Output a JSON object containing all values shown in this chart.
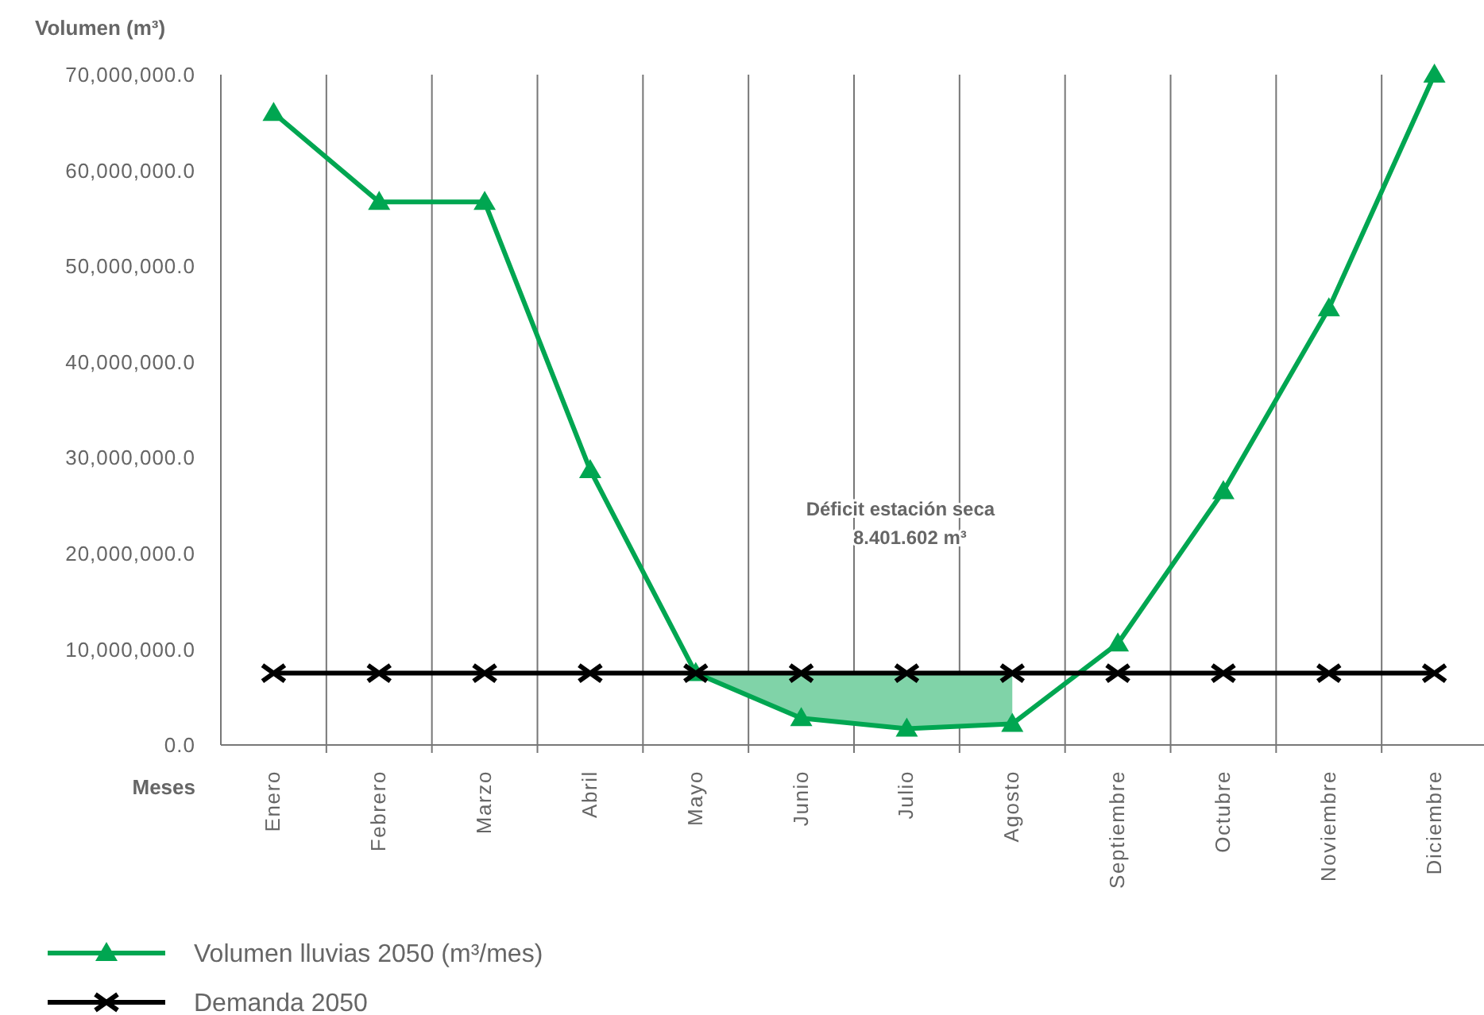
{
  "chart_data": {
    "type": "line",
    "ylabel": "Volumen (m³)",
    "xlabel": "Meses",
    "categories": [
      "Enero",
      "Febrero",
      "Marzo",
      "Abril",
      "Mayo",
      "Junio",
      "Julio",
      "Agosto",
      "Septiembre",
      "Octubre",
      "Noviembre",
      "Diciembre"
    ],
    "series": [
      {
        "name": "Volumen lluvias 2050 (m³/mes)",
        "color": "#00a651",
        "marker": "triangle",
        "values": [
          66000000,
          56700000,
          56700000,
          28700000,
          7500000,
          2800000,
          1700000,
          2200000,
          10600000,
          26500000,
          45600000,
          70000000
        ],
        "lower": [
          null,
          null,
          null,
          null,
          7500000,
          2800000,
          1700000,
          2200000,
          null,
          null,
          null,
          null
        ],
        "upper": [
          null,
          null,
          null,
          null,
          7500000,
          7500000,
          7500000,
          7500000,
          null,
          null,
          null,
          null
        ]
      },
      {
        "name": "Demanda 2050",
        "color": "#000000",
        "marker": "cross",
        "values": [
          7500000,
          7500000,
          7500000,
          7500000,
          7500000,
          7500000,
          7500000,
          7500000,
          7500000,
          7500000,
          7500000,
          7500000
        ]
      }
    ],
    "ylim": [
      0,
      70000000
    ],
    "yticks": [
      {
        "value": 0,
        "label": "0.0"
      },
      {
        "value": 10000000,
        "label": "10,000,000.0"
      },
      {
        "value": 20000000,
        "label": "20,000,000.0"
      },
      {
        "value": 30000000,
        "label": "30,000,000.0"
      },
      {
        "value": 40000000,
        "label": "40,000,000.0"
      },
      {
        "value": 50000000,
        "label": "50,000,000.0"
      },
      {
        "value": 60000000,
        "label": "60,000,000.0"
      },
      {
        "value": 70000000,
        "label": "70,000,000.0"
      }
    ],
    "grid": "x",
    "legend": "bottom left",
    "line_style": "solid",
    "annotations": [
      "Déficit estación seca",
      "8.401.602 m³"
    ]
  }
}
